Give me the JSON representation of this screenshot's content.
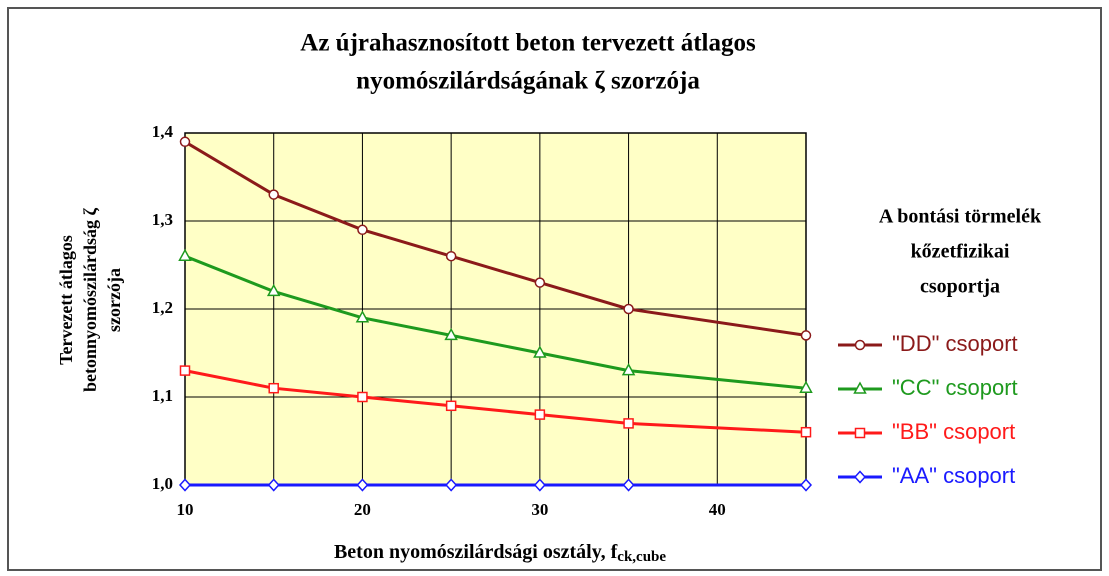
{
  "chart_data": {
    "type": "line",
    "title": [
      "Az újrahasznosított beton tervezett átlagos",
      "nyomószilárdságának ζ szorzója"
    ],
    "y_label": [
      "Tervezett átlagos",
      "betonnyomószilárdság ζ",
      "szorzója"
    ],
    "x_label": "Beton nyomószilárdsági osztály, f",
    "x_label_sub": "ck,cube",
    "legend_title": [
      "A bontási törmelék",
      "kőzetfizikai",
      "csoportja"
    ],
    "legend": "right",
    "x": [
      10,
      15,
      20,
      25,
      30,
      35,
      45
    ],
    "xlim": [
      10,
      45
    ],
    "xticks": [
      10,
      20,
      30,
      40
    ],
    "xgrid": [
      10,
      15,
      20,
      25,
      30,
      35,
      40,
      45
    ],
    "ylim": [
      1.0,
      1.4
    ],
    "yticks": [
      {
        "value": 1.0,
        "label": "1,0"
      },
      {
        "value": 1.1,
        "label": "1,1"
      },
      {
        "value": 1.2,
        "label": "1,2"
      },
      {
        "value": 1.3,
        "label": "1,3"
      },
      {
        "value": 1.4,
        "label": "1,4"
      }
    ],
    "grid": true,
    "plot_background": "#ffffc6",
    "series": [
      {
        "name": "\"DD\" csoport",
        "color": "#8b1a1a",
        "marker": "circle",
        "values": [
          1.39,
          1.33,
          1.29,
          1.26,
          1.23,
          1.2,
          1.17
        ]
      },
      {
        "name": "\"CC\" csoport",
        "color": "#1e9a1e",
        "marker": "triangle",
        "values": [
          1.26,
          1.22,
          1.19,
          1.17,
          1.15,
          1.13,
          1.11
        ]
      },
      {
        "name": "\"BB\" csoport",
        "color": "#ff1a1a",
        "marker": "square",
        "values": [
          1.13,
          1.11,
          1.1,
          1.09,
          1.08,
          1.07,
          1.06
        ]
      },
      {
        "name": "\"AA\" csoport",
        "color": "#1a1aff",
        "marker": "diamond",
        "values": [
          1.0,
          1.0,
          1.0,
          1.0,
          1.0,
          1.0,
          1.0
        ]
      }
    ]
  }
}
